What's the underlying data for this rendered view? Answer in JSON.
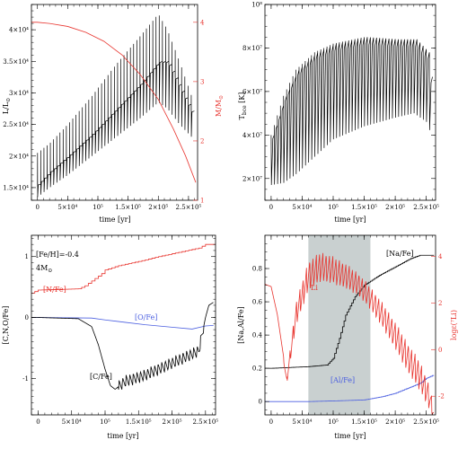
{
  "chart_data": [
    {
      "type": "line",
      "xlabel": "time [yr]",
      "ylabel": "L/L",
      "ylabel_sub": "⊙",
      "y2label": "M/M",
      "y2label_sub": "⊙",
      "xlim": [
        -10000,
        265000
      ],
      "ylim": [
        13000,
        44000
      ],
      "y2lim": [
        1,
        4.3
      ],
      "x_ticks": [
        "0",
        "5×10⁴",
        "10⁵",
        "1.5×10⁵",
        "2×10⁵",
        "2.5×10⁵"
      ],
      "y_ticks": [
        "1.5×10⁴",
        "2×10⁴",
        "2.5×10⁴",
        "3×10⁴",
        "3.5×10⁴",
        "4×10⁴"
      ],
      "y2_ticks": [
        "1",
        "2",
        "3",
        "4"
      ],
      "series": [
        {
          "color": "#000000",
          "role": "luminosity",
          "baseline_x": [
            0,
            20000,
            50000,
            90000,
            130000,
            170000,
            200000,
            215000,
            235000,
            255000
          ],
          "baseline_y": [
            15500,
            17500,
            20000,
            23500,
            27500,
            31500,
            35000,
            35000,
            31000,
            27000
          ],
          "pulse_peak_y": [
            20500,
            22000,
            25000,
            29500,
            34500,
            39000,
            42500,
            40000,
            35000,
            29500
          ],
          "pulse_dip_y": [
            13500,
            15000,
            17000,
            20000,
            23000,
            26000,
            28500,
            27500,
            25000,
            23000
          ]
        },
        {
          "color": "#e8342e",
          "role": "mass",
          "axis": "right",
          "x": [
            -10000,
            0,
            20000,
            50000,
            80000,
            110000,
            140000,
            170000,
            200000,
            225000,
            245000,
            262000
          ],
          "y": [
            4.0,
            4.0,
            3.98,
            3.93,
            3.83,
            3.68,
            3.45,
            3.12,
            2.7,
            2.2,
            1.75,
            1.3
          ]
        }
      ]
    },
    {
      "type": "line",
      "xlabel": "time [yr]",
      "ylabel": "T",
      "ylabel_sub": "bce",
      "ylabel_unit": " [K]",
      "xlim": [
        -10000,
        265000
      ],
      "ylim": [
        10000000,
        100000000
      ],
      "x_ticks": [
        "0",
        "5×10⁴",
        "10⁵",
        "1.5×10⁵",
        "2×10⁵",
        "2.5×10⁵"
      ],
      "y_ticks": [
        "2×10⁷",
        "4×10⁷",
        "6×10⁷",
        "8×10⁷",
        "10⁸"
      ],
      "series": [
        {
          "color": "#000000",
          "role": "T_bce",
          "envelope_x": [
            0,
            20000,
            40000,
            70000,
            100000,
            150000,
            200000,
            230000,
            250000,
            258000
          ],
          "envelope_y": [
            40000000,
            58000000,
            70000000,
            78000000,
            82000000,
            85000000,
            84000000,
            84000000,
            78000000,
            60000000
          ],
          "dip_y": [
            17000000,
            18000000,
            22000000,
            30000000,
            38000000,
            44000000,
            48000000,
            50000000,
            46000000,
            40000000
          ]
        }
      ]
    },
    {
      "type": "line",
      "xlabel": "time [yr]",
      "ylabel": "[C,N,O/Fe]",
      "xlim": [
        -10000,
        265000
      ],
      "ylim": [
        -1.6,
        1.35
      ],
      "x_ticks": [
        "0",
        "5×10⁴",
        "10⁵",
        "1.5×10⁵",
        "2×10⁵",
        "2.5×10⁵"
      ],
      "y_ticks": [
        "-1",
        "0",
        "1"
      ],
      "annotations": [
        "[Fe/H]=-0.4",
        "4M",
        "⊙"
      ],
      "series": [
        {
          "name": "[N/Fe]",
          "color": "#e8342e",
          "x": [
            -10000,
            0,
            60000,
            70000,
            80000,
            95000,
            100000,
            120000,
            150000,
            180000,
            210000,
            240000,
            250000,
            262000
          ],
          "y": [
            0.4,
            0.45,
            0.47,
            0.52,
            0.6,
            0.72,
            0.78,
            0.85,
            0.92,
            1.0,
            1.07,
            1.14,
            1.2,
            1.2
          ]
        },
        {
          "name": "[O/Fe]",
          "color": "#4a5ee0",
          "x": [
            -10000,
            0,
            80000,
            100000,
            130000,
            160000,
            200000,
            230000,
            250000,
            262000
          ],
          "y": [
            0.0,
            0.0,
            -0.01,
            -0.04,
            -0.08,
            -0.12,
            -0.16,
            -0.19,
            -0.14,
            -0.13
          ]
        },
        {
          "name": "[C/Fe]",
          "color": "#000000",
          "x": [
            -10000,
            0,
            60000,
            80000,
            90000,
            100000,
            108000,
            115000,
            130000,
            160000,
            190000,
            220000,
            240000,
            250000,
            255000,
            262000
          ],
          "y": [
            0.0,
            0.0,
            -0.02,
            -0.15,
            -0.45,
            -0.85,
            -1.12,
            -1.18,
            -1.05,
            -0.95,
            -0.8,
            -0.65,
            -0.55,
            0.0,
            0.2,
            0.25
          ],
          "oscillation_start_x": 120000,
          "oscillation_amp": 0.2
        }
      ]
    },
    {
      "type": "line",
      "xlabel": "time [yr]",
      "ylabel": "[Na,Al/Fe]",
      "y2label": "log",
      "y2label_eps": "ε",
      "y2label_li": "(⁷Li)",
      "xlim": [
        -10000,
        265000
      ],
      "ylim": [
        -0.08,
        1.0
      ],
      "y2lim": [
        -2.8,
        4.9
      ],
      "x_ticks": [
        "0",
        "5×10⁴",
        "10⁵",
        "1.5×10⁵",
        "2×10⁵",
        "2.5×10⁵"
      ],
      "y_ticks": [
        "0",
        "0.2",
        "0.4",
        "0.6",
        "0.8"
      ],
      "y2_ticks": [
        "-2",
        "0",
        "2",
        "4"
      ],
      "shaded_x_range": [
        60000,
        160000
      ],
      "series": [
        {
          "name": "[Na/Fe]",
          "color": "#000000",
          "x": [
            -10000,
            0,
            60000,
            90000,
            100000,
            110000,
            120000,
            135000,
            150000,
            175000,
            200000,
            225000,
            240000,
            262000
          ],
          "y": [
            0.2,
            0.2,
            0.21,
            0.22,
            0.26,
            0.38,
            0.52,
            0.63,
            0.7,
            0.76,
            0.81,
            0.86,
            0.88,
            0.88
          ]
        },
        {
          "name": "[Al/Fe]",
          "color": "#4a5ee0",
          "x": [
            -10000,
            0,
            60000,
            110000,
            150000,
            180000,
            200000,
            220000,
            240000,
            250000,
            262000
          ],
          "y": [
            0.0,
            0.0,
            0.0,
            0.005,
            0.01,
            0.03,
            0.05,
            0.08,
            0.11,
            0.14,
            0.16
          ]
        },
        {
          "name": "Li",
          "color": "#e8342e",
          "axis": "right",
          "x": [
            -10000,
            0,
            10000,
            25000,
            40000,
            60000,
            80000,
            100000,
            120000,
            140000,
            160000,
            180000,
            200000,
            220000,
            240000,
            255000,
            262000
          ],
          "y": [
            2.8,
            2.7,
            1.5,
            -1.2,
            2.0,
            3.8,
            4.2,
            4.0,
            3.7,
            3.3,
            2.7,
            2.0,
            1.2,
            0.3,
            -0.5,
            -1.5,
            -2.5
          ],
          "oscillation_amp": [
            0.0,
            0.0,
            0.0,
            0.3,
            1.0,
            1.3,
            1.3,
            1.2,
            1.1,
            1.0,
            1.0,
            1.1,
            1.2,
            1.3,
            1.3,
            1.1,
            0.5
          ]
        }
      ]
    }
  ],
  "labels": {
    "na": "[Na/Fe]",
    "al": "[Al/Fe]",
    "li": "Li"
  }
}
